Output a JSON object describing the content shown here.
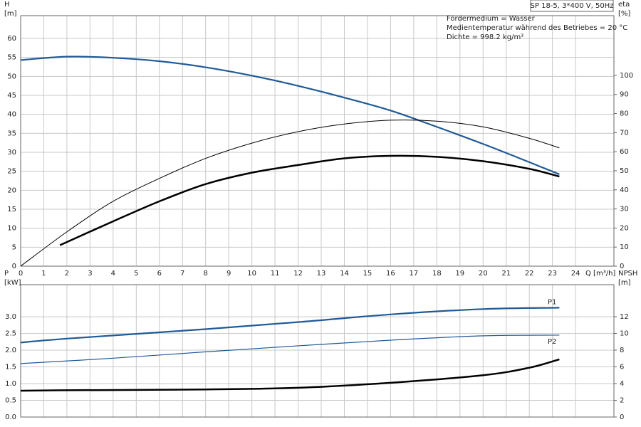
{
  "chart_data": [
    {
      "type": "line",
      "badge": "SP 18-5, 3*400 V, 50Hz",
      "annotations": [
        "Fördermedium = Wasser",
        "Medientemperatur während des Betriebes = 20 °C",
        "Dichte = 998.2 kg/m³"
      ],
      "ylabel": [
        "H",
        "[m]"
      ],
      "y2label": [
        "eta",
        "[%]"
      ],
      "xlabel": "Q [m³/h]",
      "xlim": [
        0,
        25.66
      ],
      "xticks": [
        0,
        1,
        2,
        3,
        4,
        5,
        6,
        7,
        8,
        9,
        10,
        11,
        12,
        13,
        14,
        15,
        16,
        17,
        18,
        19,
        20,
        21,
        22,
        23,
        24
      ],
      "ylim": [
        0,
        66
      ],
      "yticks": [
        0,
        5,
        10,
        15,
        20,
        25,
        30,
        35,
        40,
        45,
        50,
        55,
        60
      ],
      "y2lim": [
        0,
        131.3
      ],
      "y2ticks": [
        0,
        10,
        20,
        30,
        40,
        50,
        60,
        70,
        80,
        90,
        100
      ],
      "grid": true,
      "series": [
        {
          "color": "#1f5a96",
          "line_width": 2.2,
          "x": [
            0,
            2,
            4,
            6,
            8,
            10,
            12,
            14,
            16,
            18,
            20,
            22,
            23.3
          ],
          "values": [
            54.3,
            55.2,
            54.9,
            54,
            52.4,
            50.2,
            47.5,
            44.4,
            41,
            36.7,
            32.2,
            27.4,
            24.2
          ]
        },
        {
          "color": "#000000",
          "line_width": 1,
          "axis": "y2",
          "x": [
            0,
            2,
            4,
            6,
            8,
            10,
            12,
            14,
            16,
            18,
            20,
            22,
            23.3
          ],
          "values": [
            0,
            18,
            34,
            46,
            56.5,
            64.5,
            70.5,
            74.5,
            76.5,
            76,
            73,
            67,
            62
          ]
        },
        {
          "color": "#000000",
          "line_width": 2.5,
          "axis": "y2",
          "x": [
            1.7,
            4,
            6,
            8,
            10,
            12,
            14,
            16,
            18,
            20,
            22,
            23.3
          ],
          "values": [
            11,
            23.5,
            34,
            43,
            49,
            53,
            56.5,
            57.8,
            57.3,
            55,
            51,
            47
          ]
        }
      ]
    },
    {
      "type": "line",
      "ylabel": [
        "P",
        "[kW]"
      ],
      "y2label": [
        "NPSH",
        "[m]"
      ],
      "xlim": [
        0,
        25.66
      ],
      "ylim": [
        0,
        3.96
      ],
      "yticks": [
        {
          "value": 0,
          "label": "0.0"
        },
        0.5,
        {
          "value": 1,
          "label": "1.0"
        },
        1.5,
        {
          "value": 2,
          "label": "2.0"
        },
        2.5,
        {
          "value": 3,
          "label": "3.0"
        }
      ],
      "y2lim": [
        0,
        15.83
      ],
      "y2ticks": [
        0,
        2,
        4,
        6,
        8,
        10,
        12
      ],
      "grid": true,
      "series": [
        {
          "name": "P1",
          "label_position": "above",
          "color": "#1f5a96",
          "line_width": 2.2,
          "x": [
            0,
            1.7,
            4,
            8,
            12,
            16,
            20,
            23.3
          ],
          "values": [
            2.23,
            2.33,
            2.44,
            2.63,
            2.84,
            3.07,
            3.23,
            3.27
          ]
        },
        {
          "name": "P2",
          "label_position": "below",
          "color": "#1f5a96",
          "line_width": 1.2,
          "x": [
            0,
            4,
            8,
            12,
            16,
            20,
            23.3
          ],
          "values": [
            1.6,
            1.76,
            1.95,
            2.13,
            2.3,
            2.43,
            2.45
          ]
        },
        {
          "color": "#000000",
          "line_width": 2.5,
          "axis": "y2",
          "x": [
            0,
            1.7,
            8,
            12,
            16,
            20,
            22,
            23.3
          ],
          "values": [
            3.15,
            3.2,
            3.3,
            3.5,
            4.1,
            5.0,
            5.9,
            6.9
          ]
        }
      ]
    }
  ]
}
